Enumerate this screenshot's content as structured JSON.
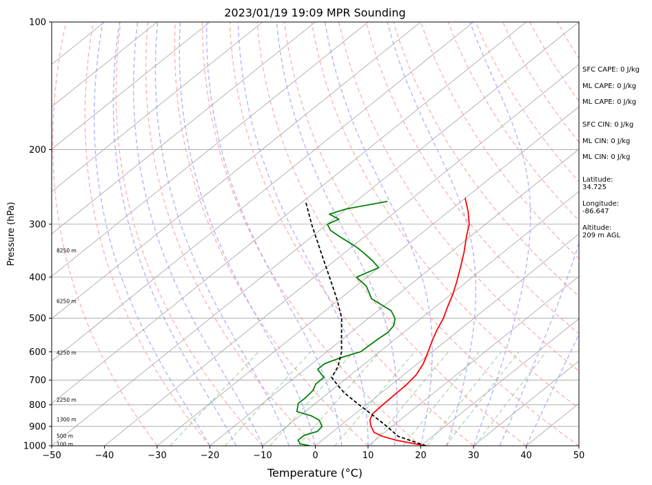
{
  "chart_data": {
    "type": "line",
    "title": "2023/01/19 19:09 MPR Sounding",
    "xlabel": "Temperature (°C)",
    "ylabel": "Pressure (hPa)",
    "xlim": [
      -50,
      50
    ],
    "ylim": [
      1000,
      100
    ],
    "y_scale": "log",
    "grid": true,
    "skew_t": true,
    "x_ticks": [
      "−50",
      "−40",
      "−30",
      "−20",
      "−10",
      "0",
      "10",
      "20",
      "30",
      "40",
      "50"
    ],
    "y_ticks": [
      "100",
      "200",
      "300",
      "400",
      "500",
      "600",
      "700",
      "800",
      "900",
      "1000"
    ],
    "colors": {
      "temperature": "#ff0000",
      "dewpoint": "#008000",
      "parcel": "#000000",
      "dry_adiabats": "#ff9999",
      "moist_adiabats": "#9999ff",
      "mixing_ratio": "#80c080",
      "isotherms": "#a0a0a0"
    },
    "series": [
      {
        "key": "temperature",
        "points": [
          [
            1000,
            21
          ],
          [
            990,
            18.5
          ],
          [
            970,
            14
          ],
          [
            950,
            10.5
          ],
          [
            930,
            8
          ],
          [
            900,
            6
          ],
          [
            870,
            4.3
          ],
          [
            840,
            3.3
          ],
          [
            800,
            3.1
          ],
          [
            760,
            3.0
          ],
          [
            720,
            2.9
          ],
          [
            680,
            2.4
          ],
          [
            640,
            1.1
          ],
          [
            600,
            -0.8
          ],
          [
            560,
            -2.9
          ],
          [
            530,
            -4.4
          ],
          [
            500,
            -5.8
          ],
          [
            470,
            -7.7
          ],
          [
            440,
            -9.6
          ],
          [
            410,
            -11.9
          ],
          [
            380,
            -14.5
          ],
          [
            350,
            -17.4
          ],
          [
            320,
            -20.8
          ],
          [
            300,
            -23.1
          ],
          [
            280,
            -26.3
          ],
          [
            260,
            -30.1
          ]
        ]
      },
      {
        "key": "dewpoint",
        "points": [
          [
            1000,
            -1
          ],
          [
            990,
            -3.3
          ],
          [
            970,
            -4.6
          ],
          [
            945,
            -4.6
          ],
          [
            925,
            -3
          ],
          [
            900,
            -3.3
          ],
          [
            870,
            -5.3
          ],
          [
            850,
            -7.8
          ],
          [
            830,
            -11.6
          ],
          [
            810,
            -12.5
          ],
          [
            795,
            -13.2
          ],
          [
            770,
            -13.2
          ],
          [
            740,
            -13.5
          ],
          [
            715,
            -14.5
          ],
          [
            690,
            -14.5
          ],
          [
            660,
            -17.6
          ],
          [
            640,
            -17.6
          ],
          [
            620,
            -16
          ],
          [
            600,
            -13.6
          ],
          [
            560,
            -13.3
          ],
          [
            540,
            -13
          ],
          [
            520,
            -13.5
          ],
          [
            500,
            -15
          ],
          [
            480,
            -17.5
          ],
          [
            450,
            -24
          ],
          [
            420,
            -28
          ],
          [
            400,
            -32
          ],
          [
            380,
            -30
          ],
          [
            365,
            -33
          ],
          [
            350,
            -36.5
          ],
          [
            340,
            -39
          ],
          [
            320,
            -45
          ],
          [
            310,
            -48
          ],
          [
            300,
            -50
          ],
          [
            292,
            -49
          ],
          [
            284,
            -52
          ],
          [
            276,
            -50
          ],
          [
            265,
            -44
          ]
        ]
      },
      {
        "key": "parcel",
        "points": [
          [
            1000,
            21
          ],
          [
            950,
            13.5
          ],
          [
            900,
            9
          ],
          [
            850,
            4
          ],
          [
            800,
            -1.4
          ],
          [
            750,
            -7
          ],
          [
            720,
            -10
          ],
          [
            690,
            -13
          ],
          [
            650,
            -14.4
          ],
          [
            600,
            -17.2
          ],
          [
            550,
            -21
          ],
          [
            500,
            -25.1
          ],
          [
            450,
            -30.6
          ],
          [
            400,
            -37.1
          ],
          [
            350,
            -44.5
          ],
          [
            300,
            -53
          ],
          [
            265,
            -59.5
          ]
        ]
      }
    ],
    "height_labels": [
      {
        "text": "100 m",
        "p": 990
      },
      {
        "text": "500 m",
        "p": 948
      },
      {
        "text": "1300 m",
        "p": 866
      },
      {
        "text": "2250 m",
        "p": 779
      },
      {
        "text": "4250 m",
        "p": 603
      },
      {
        "text": "6250 m",
        "p": 455
      },
      {
        "text": "8250 m",
        "p": 346
      }
    ],
    "annotations": [
      "SFC CAPE: 0 J/kg",
      "ML CAPE: 0 J/kg",
      "ML CAPE: 0 J/kg",
      "SFC CIN: 0 J/kg",
      "ML CIN: 0 J/kg",
      "ML CIN: 0 J/kg",
      "Latitude:",
      "34.725",
      "Longitude:",
      "-86.647",
      "Altitude:",
      "209 m AGL"
    ]
  }
}
